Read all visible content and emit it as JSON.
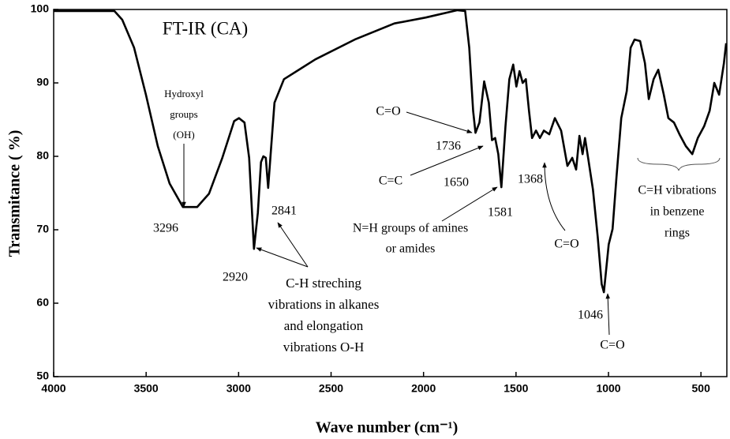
{
  "chart_data": {
    "type": "line",
    "title": "FT-IR (CA)",
    "xlabel": "Wave number (cm⁻¹)",
    "ylabel": "Transmitance ( %)",
    "x": [
      4000,
      3672,
      3629,
      3565,
      3501,
      3437,
      3373,
      3301,
      3224,
      3160,
      3088,
      3024,
      2998,
      2968,
      2943,
      2917,
      2896,
      2879,
      2866,
      2853,
      2840,
      2828,
      2806,
      2755,
      2585,
      2372,
      2158,
      1988,
      1817,
      1775,
      1753,
      1732,
      1719,
      1698,
      1672,
      1647,
      1630,
      1613,
      1596,
      1579,
      1557,
      1536,
      1515,
      1498,
      1481,
      1464,
      1447,
      1430,
      1413,
      1392,
      1371,
      1349,
      1320,
      1290,
      1256,
      1222,
      1196,
      1175,
      1157,
      1140,
      1127,
      1110,
      1084,
      1058,
      1037,
      1025,
      999,
      978,
      957,
      931,
      901,
      880,
      859,
      829,
      803,
      782,
      756,
      731,
      701,
      676,
      646,
      616,
      582,
      547,
      517,
      483,
      453,
      428,
      402,
      376,
      364
    ],
    "values": [
      99.8,
      99.8,
      98.6,
      94.8,
      88.4,
      81.4,
      76.3,
      73.1,
      73.1,
      74.9,
      79.8,
      84.8,
      85.2,
      84.6,
      79.8,
      67.4,
      72.3,
      79.2,
      80,
      79.8,
      75.7,
      79.8,
      87.3,
      90.5,
      93.2,
      95.9,
      98.1,
      98.9,
      99.9,
      99.8,
      94.8,
      86.2,
      83.2,
      84.6,
      90.2,
      87.3,
      82.2,
      82.5,
      80.3,
      75.8,
      84.1,
      90.5,
      92.5,
      89.5,
      91.6,
      90,
      90.5,
      86.2,
      82.5,
      83.5,
      82.5,
      83.5,
      83,
      85.2,
      83.5,
      78.7,
      79.8,
      78.2,
      82.8,
      80.3,
      82.5,
      79.8,
      75.5,
      69,
      62.6,
      61.5,
      68,
      70.1,
      77.1,
      85.2,
      88.9,
      94.8,
      95.9,
      95.7,
      92.7,
      87.8,
      90.5,
      91.8,
      88.4,
      85.2,
      84.6,
      83,
      81.4,
      80.3,
      82.5,
      84.1,
      86.2,
      90,
      88.4,
      92.7,
      95.4
    ],
    "color": "#000000",
    "xlim": [
      4000,
      360
    ],
    "ylim": [
      50,
      100
    ],
    "xticks": [
      4000,
      3500,
      3000,
      2500,
      2000,
      1500,
      1000,
      500
    ],
    "yticks": [
      50,
      60,
      70,
      80,
      90,
      100
    ],
    "grid": false,
    "annotations": [
      [
        "Hydroxyl",
        "groups",
        "(OH)"
      ],
      [
        "3296"
      ],
      [
        "2920"
      ],
      [
        "2841"
      ],
      [
        "C-H streching",
        "vibrations in alkanes",
        "and elongation",
        "vibrations O-H"
      ],
      [
        "C=O"
      ],
      [
        "1736"
      ],
      [
        "C=C"
      ],
      [
        "1650"
      ],
      [
        "1581"
      ],
      [
        "1368"
      ],
      [
        "N=H groups of amines",
        "or amides"
      ],
      [
        "C=O"
      ],
      [
        "1046"
      ],
      [
        "C=O"
      ],
      [
        "C=H vibrations",
        "in benzene",
        "rings"
      ]
    ]
  }
}
